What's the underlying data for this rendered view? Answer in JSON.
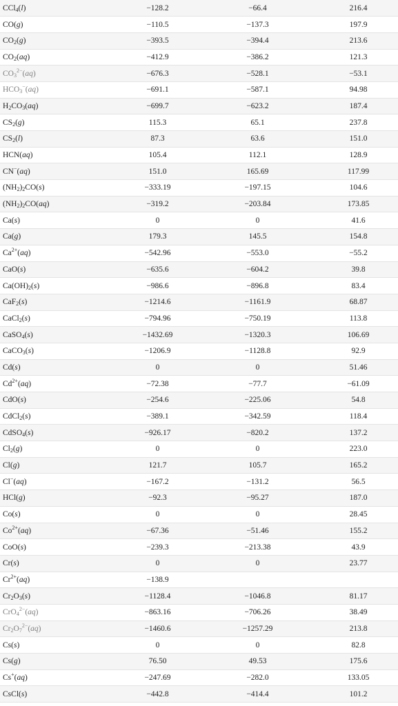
{
  "table": {
    "rows": [
      {
        "formula_html": "CCl<sub>4</sub>(<i>l</i>)",
        "plain": "CCl4(l)",
        "dh": "−128.2",
        "dg": "−66.4",
        "s": "216.4"
      },
      {
        "formula_html": "CO(<i>g</i>)",
        "plain": "CO(g)",
        "dh": "−110.5",
        "dg": "−137.3",
        "s": "197.9"
      },
      {
        "formula_html": "CO<sub>2</sub>(<i>g</i>)",
        "plain": "CO2(g)",
        "dh": "−393.5",
        "dg": "−394.4",
        "s": "213.6"
      },
      {
        "formula_html": "CO<sub>2</sub>(<i>aq</i>)",
        "plain": "CO2(aq)",
        "dh": "−412.9",
        "dg": "−386.2",
        "s": "121.3"
      },
      {
        "formula_html": "CO<sub>3</sub><sup>2−</sup>(<i>aq</i>)",
        "plain": "CO3 2−(aq)",
        "dh": "−676.3",
        "dg": "−528.1",
        "s": "−53.1",
        "muted": true
      },
      {
        "formula_html": "HCO<sub>3</sub><sup>−</sup>(<i>aq</i>)",
        "plain": "HCO3 −(aq)",
        "dh": "−691.1",
        "dg": "−587.1",
        "s": "94.98",
        "muted": true
      },
      {
        "formula_html": "H<sub>2</sub>CO<sub>3</sub>(<i>aq</i>)",
        "plain": "H2CO3(aq)",
        "dh": "−699.7",
        "dg": "−623.2",
        "s": "187.4"
      },
      {
        "formula_html": "CS<sub>2</sub>(<i>g</i>)",
        "plain": "CS2(g)",
        "dh": "115.3",
        "dg": "65.1",
        "s": "237.8"
      },
      {
        "formula_html": "CS<sub>2</sub>(<i>l</i>)",
        "plain": "CS2(l)",
        "dh": "87.3",
        "dg": "63.6",
        "s": "151.0"
      },
      {
        "formula_html": "HCN(<i>aq</i>)",
        "plain": "HCN(aq)",
        "dh": "105.4",
        "dg": "112.1",
        "s": "128.9"
      },
      {
        "formula_html": "CN<sup>−</sup>(<i>aq</i>)",
        "plain": "CN−(aq)",
        "dh": "151.0",
        "dg": "165.69",
        "s": "117.99"
      },
      {
        "formula_html": "(NH<sub>2</sub>)<sub>2</sub>CO(<i>s</i>)",
        "plain": "(NH2)2CO(s)",
        "dh": "−333.19",
        "dg": "−197.15",
        "s": "104.6"
      },
      {
        "formula_html": "(NH<sub>2</sub>)<sub>2</sub>CO(<i>aq</i>)",
        "plain": "(NH2)2CO(aq)",
        "dh": "−319.2",
        "dg": "−203.84",
        "s": "173.85"
      },
      {
        "formula_html": "Ca(<i>s</i>)",
        "plain": "Ca(s)",
        "dh": "0",
        "dg": "0",
        "s": "41.6"
      },
      {
        "formula_html": "Ca(<i>g</i>)",
        "plain": "Ca(g)",
        "dh": "179.3",
        "dg": "145.5",
        "s": "154.8"
      },
      {
        "formula_html": "Ca<sup>2+</sup>(<i>aq</i>)",
        "plain": "Ca2+(aq)",
        "dh": "−542.96",
        "dg": "−553.0",
        "s": "−55.2"
      },
      {
        "formula_html": "CaO(<i>s</i>)",
        "plain": "CaO(s)",
        "dh": "−635.6",
        "dg": "−604.2",
        "s": "39.8"
      },
      {
        "formula_html": "Ca(OH)<sub>2</sub>(<i>s</i>)",
        "plain": "Ca(OH)2(s)",
        "dh": "−986.6",
        "dg": "−896.8",
        "s": "83.4"
      },
      {
        "formula_html": "CaF<sub>2</sub>(<i>s</i>)",
        "plain": "CaF2(s)",
        "dh": "−1214.6",
        "dg": "−1161.9",
        "s": "68.87"
      },
      {
        "formula_html": "CaCl<sub>2</sub>(<i>s</i>)",
        "plain": "CaCl2(s)",
        "dh": "−794.96",
        "dg": "−750.19",
        "s": "113.8"
      },
      {
        "formula_html": "CaSO<sub>4</sub>(<i>s</i>)",
        "plain": "CaSO4(s)",
        "dh": "−1432.69",
        "dg": "−1320.3",
        "s": "106.69"
      },
      {
        "formula_html": "CaCO<sub>3</sub>(<i>s</i>)",
        "plain": "CaCO3(s)",
        "dh": "−1206.9",
        "dg": "−1128.8",
        "s": "92.9"
      },
      {
        "formula_html": "Cd(<i>s</i>)",
        "plain": "Cd(s)",
        "dh": "0",
        "dg": "0",
        "s": "51.46"
      },
      {
        "formula_html": "Cd<sup>2+</sup>(<i>aq</i>)",
        "plain": "Cd2+(aq)",
        "dh": "−72.38",
        "dg": "−77.7",
        "s": "−61.09"
      },
      {
        "formula_html": "CdO(<i>s</i>)",
        "plain": "CdO(s)",
        "dh": "−254.6",
        "dg": "−225.06",
        "s": "54.8"
      },
      {
        "formula_html": "CdCl<sub>2</sub>(<i>s</i>)",
        "plain": "CdCl2(s)",
        "dh": "−389.1",
        "dg": "−342.59",
        "s": "118.4"
      },
      {
        "formula_html": "CdSO<sub>4</sub>(<i>s</i>)",
        "plain": "CdSO4(s)",
        "dh": "−926.17",
        "dg": "−820.2",
        "s": "137.2"
      },
      {
        "formula_html": "Cl<sub>2</sub>(<i>g</i>)",
        "plain": "Cl2(g)",
        "dh": "0",
        "dg": "0",
        "s": "223.0"
      },
      {
        "formula_html": "Cl(<i>g</i>)",
        "plain": "Cl(g)",
        "dh": "121.7",
        "dg": "105.7",
        "s": "165.2"
      },
      {
        "formula_html": "Cl<sup>−</sup>(<i>aq</i>)",
        "plain": "Cl−(aq)",
        "dh": "−167.2",
        "dg": "−131.2",
        "s": "56.5"
      },
      {
        "formula_html": "HCl(<i>g</i>)",
        "plain": "HCl(g)",
        "dh": "−92.3",
        "dg": "−95.27",
        "s": "187.0"
      },
      {
        "formula_html": "Co(<i>s</i>)",
        "plain": "Co(s)",
        "dh": "0",
        "dg": "0",
        "s": "28.45"
      },
      {
        "formula_html": "Co<sup>2+</sup>(<i>aq</i>)",
        "plain": "Co2+(aq)",
        "dh": "−67.36",
        "dg": "−51.46",
        "s": "155.2"
      },
      {
        "formula_html": "CoO(<i>s</i>)",
        "plain": "CoO(s)",
        "dh": "−239.3",
        "dg": "−213.38",
        "s": "43.9"
      },
      {
        "formula_html": "Cr(<i>s</i>)",
        "plain": "Cr(s)",
        "dh": "0",
        "dg": "0",
        "s": "23.77"
      },
      {
        "formula_html": "Cr<sup>2+</sup>(<i>aq</i>)",
        "plain": "Cr2+(aq)",
        "dh": "−138.9",
        "dg": "",
        "s": ""
      },
      {
        "formula_html": "Cr<sub>2</sub>O<sub>3</sub>(<i>s</i>)",
        "plain": "Cr2O3(s)",
        "dh": "−1128.4",
        "dg": "−1046.8",
        "s": "81.17"
      },
      {
        "formula_html": "CrO<sub>4</sub><sup>2−</sup>(<i>aq</i>)",
        "plain": "CrO4 2−(aq)",
        "dh": "−863.16",
        "dg": "−706.26",
        "s": "38.49",
        "muted": true
      },
      {
        "formula_html": "Cr<sub>2</sub>O<sub>7</sub><sup>2−</sup>(<i>aq</i>)",
        "plain": "Cr2O7 2−(aq)",
        "dh": "−1460.6",
        "dg": "−1257.29",
        "s": "213.8",
        "muted": true
      },
      {
        "formula_html": "Cs(<i>s</i>)",
        "plain": "Cs(s)",
        "dh": "0",
        "dg": "0",
        "s": "82.8"
      },
      {
        "formula_html": "Cs(<i>g</i>)",
        "plain": "Cs(g)",
        "dh": "76.50",
        "dg": "49.53",
        "s": "175.6"
      },
      {
        "formula_html": "Cs<sup>+</sup>(<i>aq</i>)",
        "plain": "Cs+(aq)",
        "dh": "−247.69",
        "dg": "−282.0",
        "s": "133.05"
      },
      {
        "formula_html": "CsCl(<i>s</i>)",
        "plain": "CsCl(s)",
        "dh": "−442.8",
        "dg": "−414.4",
        "s": "101.2"
      }
    ]
  }
}
